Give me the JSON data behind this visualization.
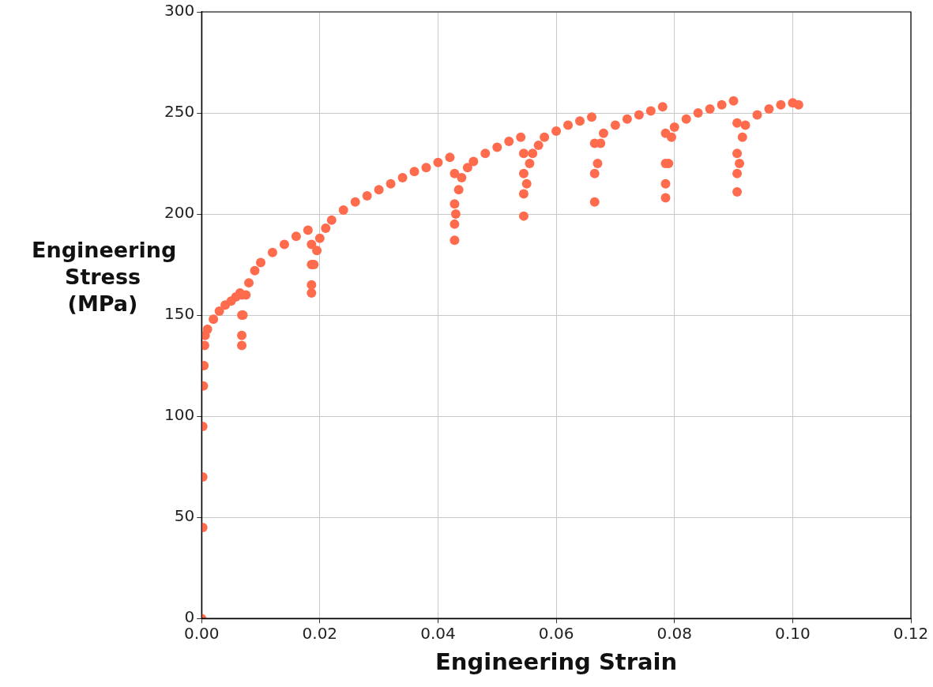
{
  "chart_data": {
    "type": "scatter",
    "xlabel": "Engineering Strain",
    "ylabel": "Engineering Stress (MPa)",
    "xlim": [
      0,
      0.12
    ],
    "ylim": [
      0,
      300
    ],
    "xticks": [
      {
        "value": 0,
        "label": "0.00"
      },
      0.02,
      0.04,
      0.06,
      0.08,
      {
        "value": 0.1,
        "label": "0.10"
      },
      0.12
    ],
    "yticks": [
      0,
      50,
      100,
      150,
      200,
      250,
      300
    ],
    "grid": true,
    "marker": "circle",
    "series": [
      {
        "color": "#ff6b4d",
        "x": [
          0,
          0.0002,
          0.0002,
          0.0002,
          0.0003,
          0.0004,
          0.0005,
          0.0006,
          0.001,
          0.002,
          0.003,
          0.004,
          0.005,
          0.0058,
          0.0065,
          0.0068,
          0.0068,
          0.0068,
          0.0068,
          0.007,
          0.0075,
          0.008,
          0.009,
          0.01,
          0.012,
          0.014,
          0.016,
          0.018,
          0.0186,
          0.0186,
          0.0186,
          0.0186,
          0.019,
          0.0195,
          0.02,
          0.021,
          0.022,
          0.024,
          0.026,
          0.028,
          0.03,
          0.032,
          0.034,
          0.036,
          0.038,
          0.04,
          0.042,
          0.0428,
          0.0428,
          0.0428,
          0.0428,
          0.043,
          0.0435,
          0.044,
          0.045,
          0.046,
          0.048,
          0.05,
          0.052,
          0.054,
          0.0545,
          0.0545,
          0.0545,
          0.0545,
          0.055,
          0.0555,
          0.056,
          0.057,
          0.058,
          0.06,
          0.062,
          0.064,
          0.066,
          0.0665,
          0.0665,
          0.0665,
          0.067,
          0.0675,
          0.068,
          0.07,
          0.072,
          0.074,
          0.076,
          0.078,
          0.0785,
          0.0785,
          0.0785,
          0.0785,
          0.079,
          0.0795,
          0.08,
          0.082,
          0.084,
          0.086,
          0.088,
          0.09,
          0.0906,
          0.0906,
          0.0906,
          0.0906,
          0.091,
          0.0915,
          0.092,
          0.094,
          0.096,
          0.098,
          0.1,
          0.101
        ],
        "values": [
          0,
          45,
          70,
          95,
          115,
          125,
          135,
          140,
          143,
          148,
          152,
          155,
          157,
          159,
          161,
          160,
          150,
          140,
          135,
          150,
          160,
          166,
          172,
          176,
          181,
          185,
          189,
          192,
          185,
          175,
          165,
          161,
          175,
          182,
          188,
          193,
          197,
          202,
          206,
          209,
          212,
          215,
          218,
          221,
          223,
          225.5,
          228,
          220,
          205,
          195,
          187,
          200,
          212,
          218,
          223,
          226,
          230,
          233,
          236,
          238,
          230,
          220,
          210,
          199,
          215,
          225,
          230,
          234,
          238,
          241,
          244,
          246,
          248,
          235,
          220,
          206,
          225,
          235,
          240,
          244,
          247,
          249,
          251,
          253,
          240,
          225,
          215,
          208,
          225,
          238,
          243,
          247,
          250,
          252,
          254,
          256,
          245,
          230,
          220,
          211,
          225,
          238,
          244,
          249,
          252,
          254,
          255,
          254
        ]
      }
    ]
  }
}
